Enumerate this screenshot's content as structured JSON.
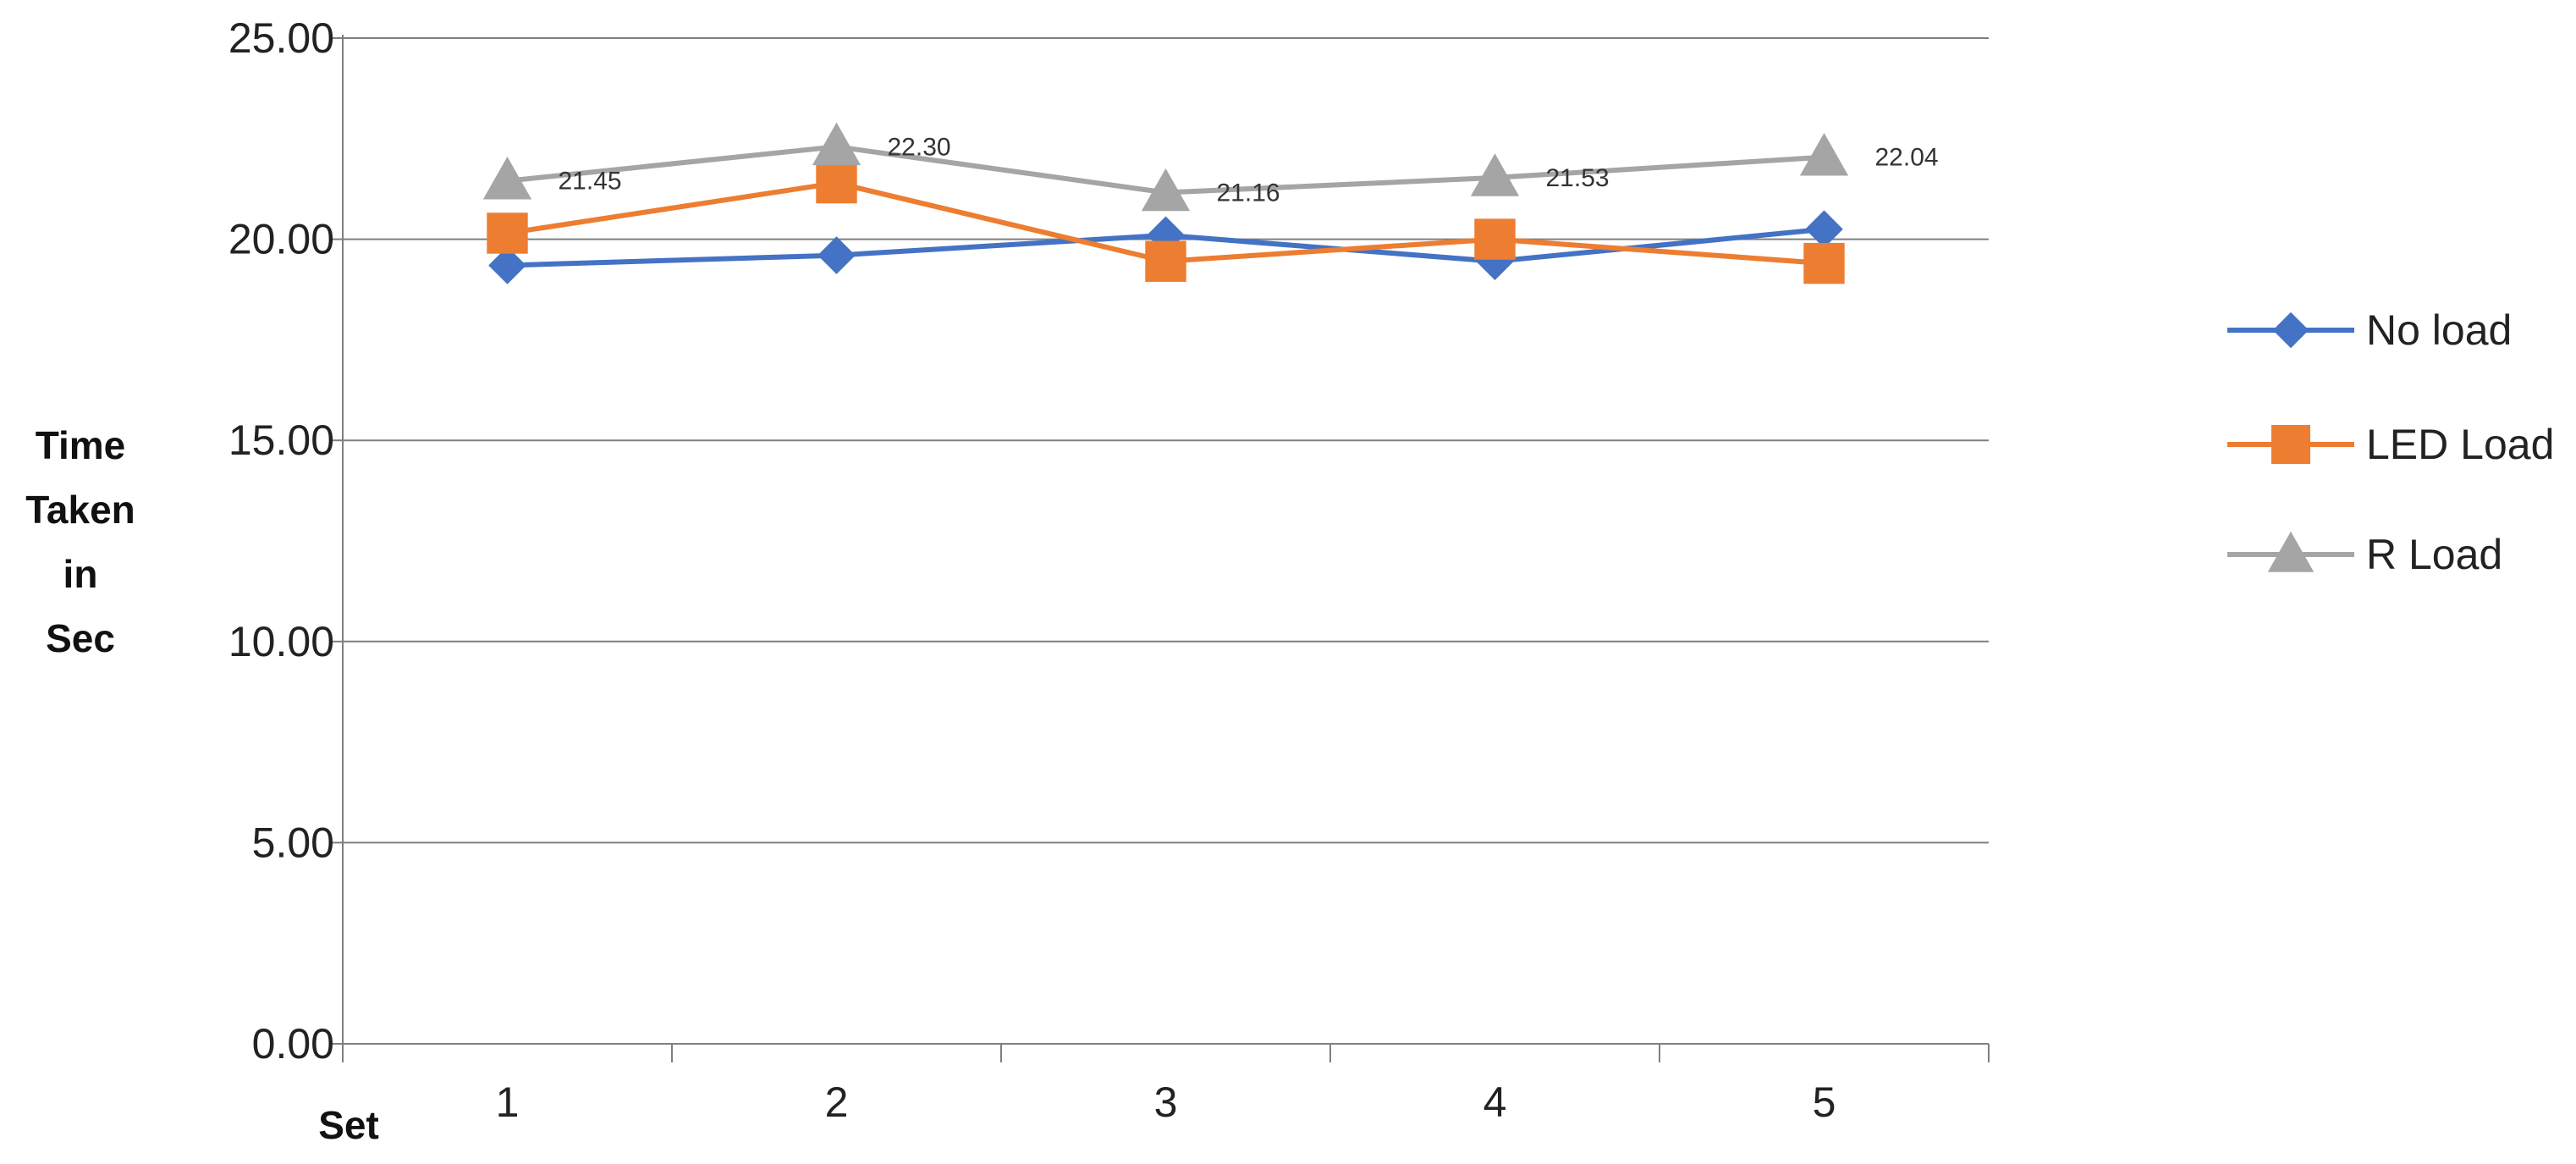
{
  "chart_data": {
    "type": "line",
    "categories": [
      "1",
      "2",
      "3",
      "4",
      "5"
    ],
    "series": [
      {
        "name": "No load",
        "values": [
          19.35,
          19.6,
          20.1,
          19.45,
          20.25
        ],
        "color": "#4472C4",
        "marker": "diamond"
      },
      {
        "name": "LED Load",
        "values": [
          20.15,
          21.4,
          19.45,
          20.0,
          19.4
        ],
        "color": "#ED7D31",
        "marker": "square"
      },
      {
        "name": "R Load",
        "values": [
          21.45,
          22.3,
          21.16,
          21.53,
          22.04
        ],
        "color": "#A5A5A5",
        "marker": "triangle",
        "data_labels": [
          "21.45",
          "22.30",
          "21.16",
          "21.53",
          "22.04"
        ]
      }
    ],
    "ylim": [
      0,
      25
    ],
    "yticks": [
      "0.00",
      "5.00",
      "10.00",
      "15.00",
      "20.00",
      "25.00"
    ],
    "ylabel_lines": [
      "Time",
      "Taken",
      "in",
      "Sec"
    ],
    "xlabel": "Set",
    "grid": true,
    "legend": "right"
  }
}
